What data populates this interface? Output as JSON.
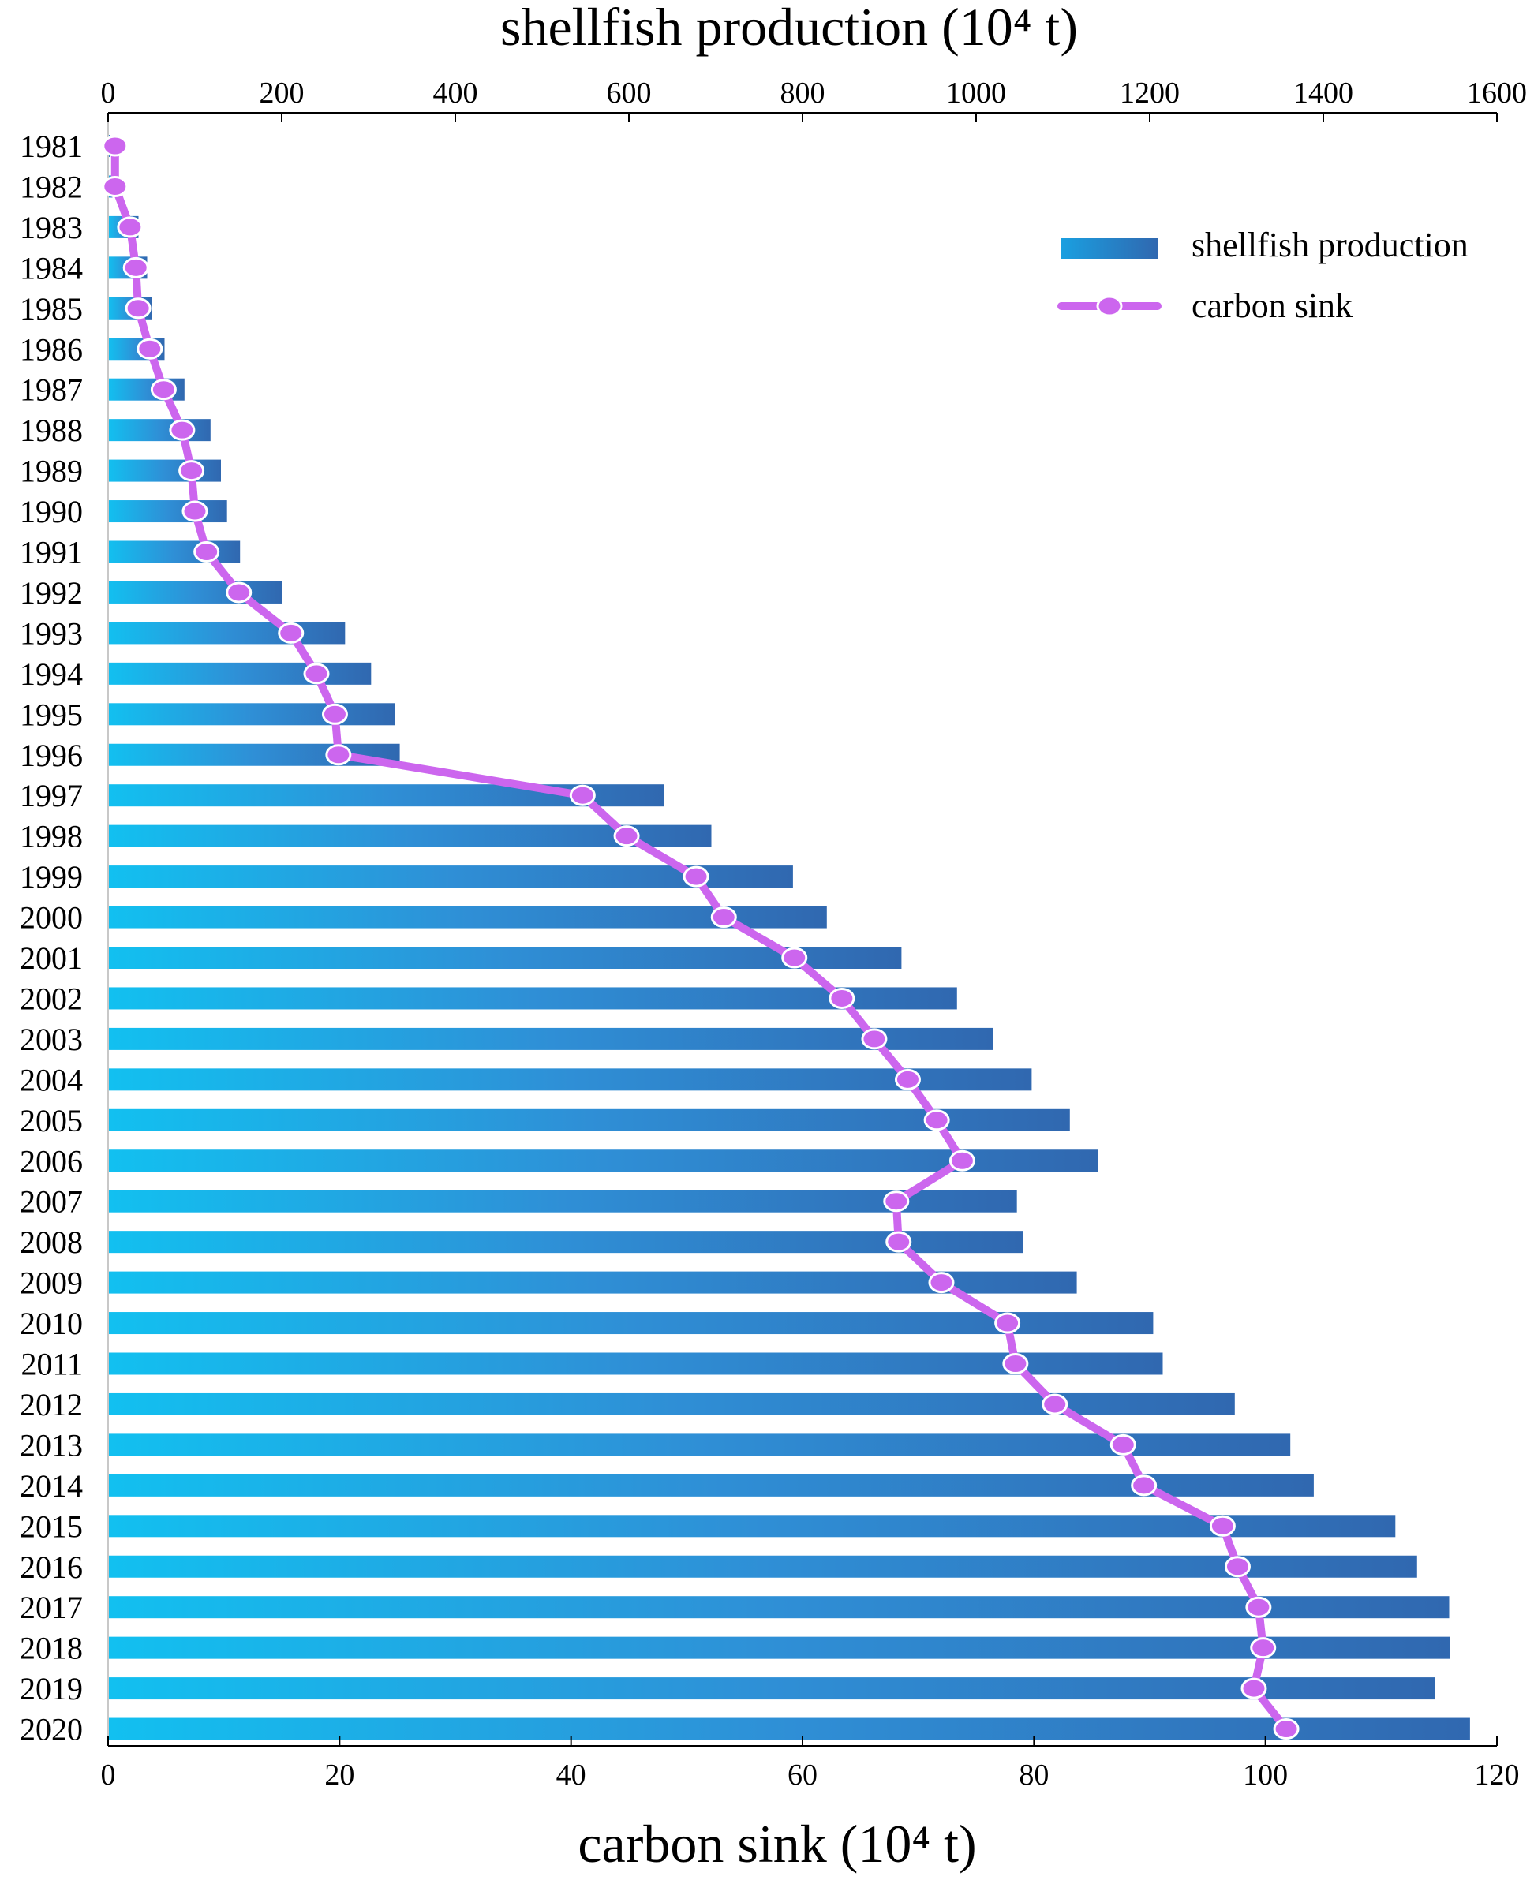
{
  "chart_data": {
    "type": "bar",
    "orientation": "horizontal",
    "title_top": "shellfish production (10⁴ t)",
    "xlabel_bottom": "carbon sink (10⁴ t)",
    "categories": [
      "1981",
      "1982",
      "1983",
      "1984",
      "1985",
      "1986",
      "1987",
      "1988",
      "1989",
      "1990",
      "1991",
      "1992",
      "1993",
      "1994",
      "1995",
      "1996",
      "1997",
      "1998",
      "1999",
      "2000",
      "2001",
      "2002",
      "2003",
      "2004",
      "2005",
      "2006",
      "2007",
      "2008",
      "2009",
      "2010",
      "2011",
      "2012",
      "2013",
      "2014",
      "2015",
      "2016",
      "2017",
      "2018",
      "2019",
      "2020"
    ],
    "top_axis": {
      "range": [
        0,
        1600
      ],
      "ticks": [
        0,
        200,
        400,
        600,
        800,
        1000,
        1200,
        1400,
        1600
      ],
      "tick_labels": [
        "0",
        "200",
        "400",
        "600",
        "800",
        "1000",
        "1200",
        "1400",
        "1600"
      ]
    },
    "bottom_axis": {
      "range": [
        0,
        120
      ],
      "ticks": [
        0,
        20,
        40,
        60,
        80,
        100,
        120
      ],
      "tick_labels": [
        "0",
        "20",
        "40",
        "60",
        "80",
        "100",
        "120"
      ]
    },
    "series": [
      {
        "name": "shellfish production",
        "kind": "bar",
        "axis": "top",
        "color_start": "#12c0f0",
        "color_end": "#2e6fb5",
        "values": [
          2,
          5,
          35,
          45,
          50,
          65,
          88,
          118,
          130,
          137,
          152,
          200,
          273,
          303,
          330,
          336,
          640,
          695,
          789,
          828,
          914,
          978,
          1020,
          1064,
          1108,
          1140,
          1047,
          1054,
          1116,
          1204,
          1215,
          1298,
          1362,
          1389,
          1483,
          1508,
          1545,
          1546,
          1529,
          1569
        ]
      },
      {
        "name": "carbon sink",
        "kind": "line",
        "axis": "bottom",
        "color": "#cc66ee",
        "values": [
          0.6,
          0.6,
          1.9,
          2.4,
          2.6,
          3.6,
          4.8,
          6.4,
          7.2,
          7.5,
          8.5,
          11.3,
          15.8,
          18.0,
          19.6,
          19.9,
          41.0,
          44.8,
          50.8,
          53.2,
          59.3,
          63.4,
          66.2,
          69.1,
          71.6,
          73.8,
          68.1,
          68.3,
          72.0,
          77.7,
          78.4,
          81.8,
          87.7,
          89.5,
          96.3,
          97.6,
          99.4,
          99.8,
          99.0,
          101.8
        ]
      }
    ],
    "legend": {
      "position": "top-right",
      "entries": [
        "shellfish production",
        "carbon sink"
      ]
    }
  }
}
